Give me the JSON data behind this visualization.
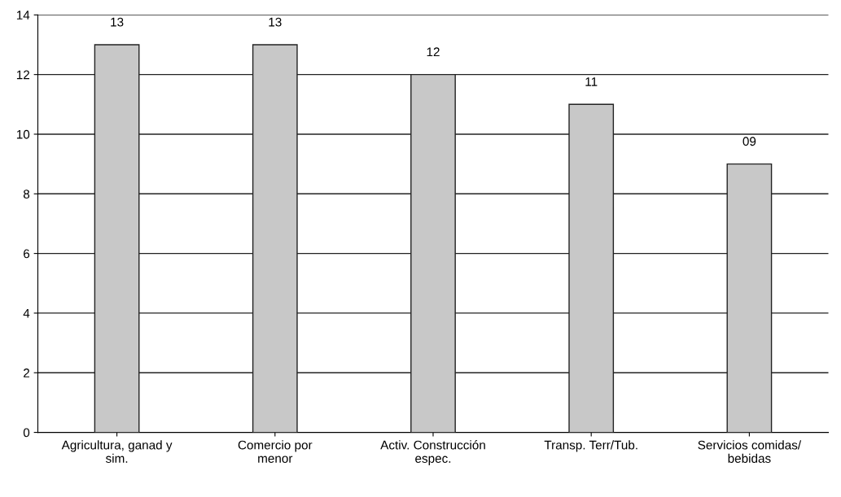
{
  "chart_data": {
    "type": "bar",
    "categories": [
      "Agricultura, ganad y\nsim.",
      "Comercio por\nmenor",
      "Activ. Construcción\nespec.",
      "Transp. Terr/Tub.",
      "Servicios comidas/\nbebidas"
    ],
    "values": [
      13,
      13,
      12,
      11,
      9
    ],
    "value_labels": [
      "13",
      "13",
      "12",
      "11",
      "09"
    ],
    "color": "#c8c8c8",
    "ylim": [
      0,
      14
    ],
    "yticks": [
      0,
      2,
      4,
      6,
      8,
      10,
      12,
      14
    ],
    "grid": "y",
    "legend": false
  }
}
